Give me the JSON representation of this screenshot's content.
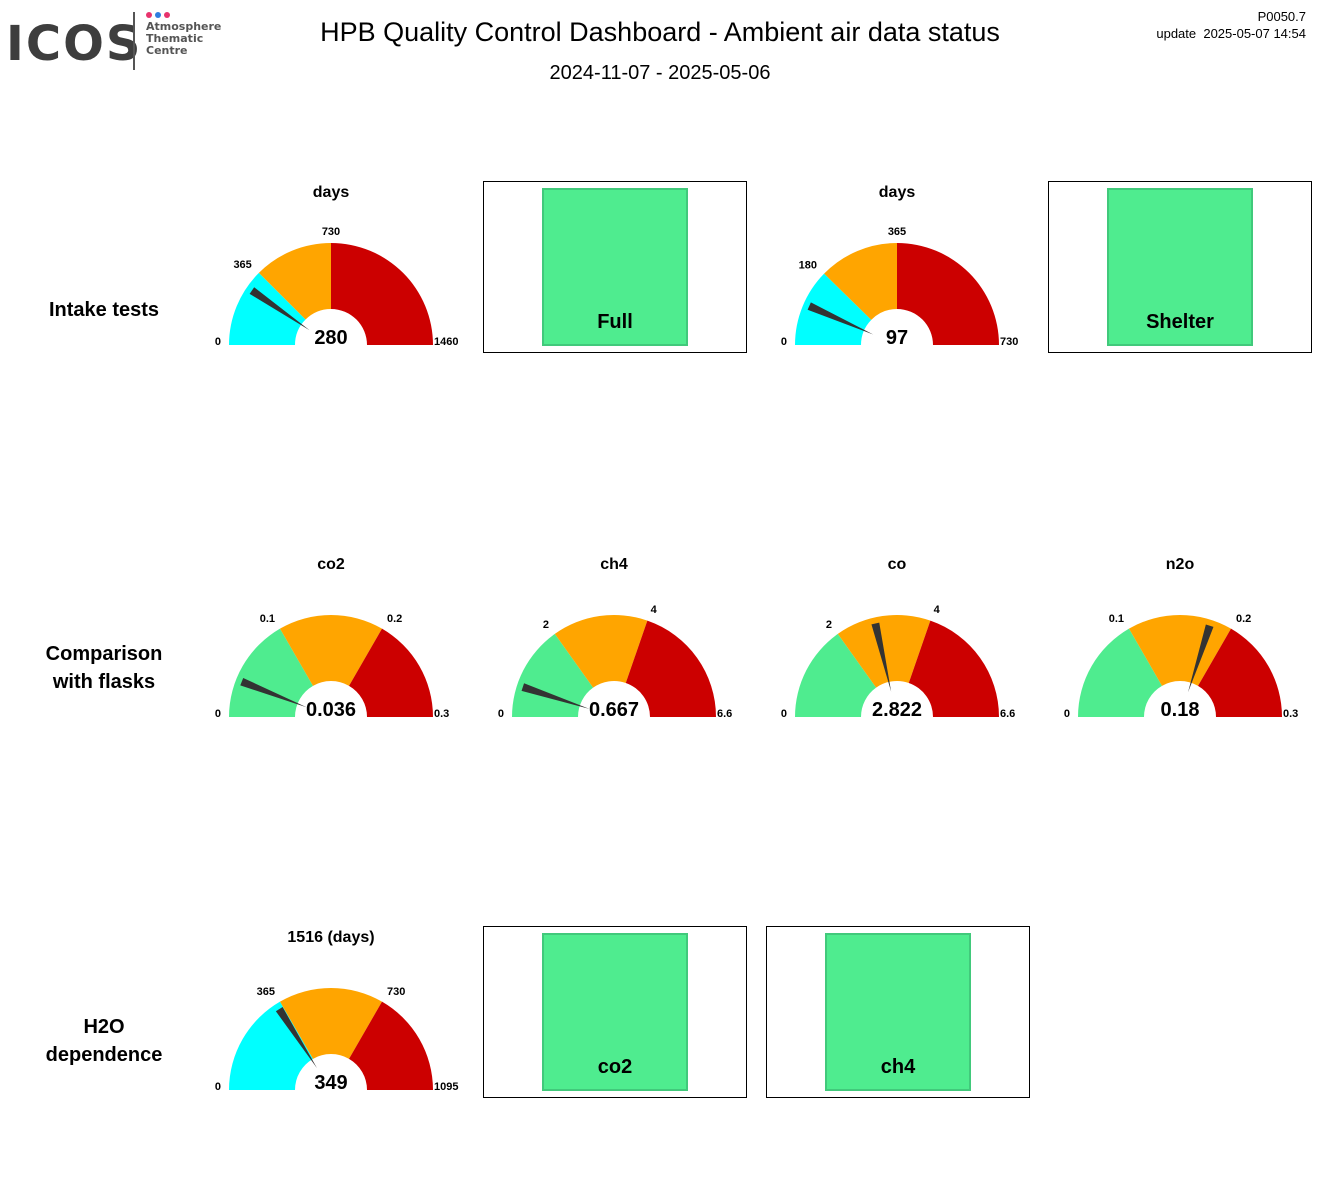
{
  "logo": {
    "text": "ICOS",
    "line1": "Atmosphere",
    "line2": "Thematic",
    "line3": "Centre",
    "dot_colors": [
      "#e8336d",
      "#2f7ee0",
      "#e8336d"
    ]
  },
  "header": {
    "title": "HPB  Quality Control Dashboard - Ambient air data status",
    "date_range": "2024-11-07 - 2025-05-06",
    "version": "P0050.7",
    "update": "update  2025-05-07 14:54"
  },
  "colors": {
    "cyan": "#00ffff",
    "green": "#4fec8f",
    "orange": "#ffa500",
    "red": "#cc0000",
    "needle": "#333333"
  },
  "rows": {
    "intake": {
      "label_line1": "Intake tests",
      "label_line2": ""
    },
    "flasks": {
      "label_line1": "Comparison",
      "label_line2": "with flasks"
    },
    "h2o": {
      "label_line1": "H2O",
      "label_line2": "dependence"
    }
  },
  "gauges": {
    "intake_full_days": {
      "title": "days",
      "value": 280,
      "value_label": "280",
      "min": 0,
      "max": 1460,
      "zones": [
        {
          "to": 365,
          "color": "cyan"
        },
        {
          "to": 730,
          "color": "orange"
        },
        {
          "to": 1460,
          "color": "red"
        }
      ],
      "tick_labels": [
        "0",
        "365",
        "730",
        "1460"
      ]
    },
    "intake_shelter_days": {
      "title": "days",
      "value": 97,
      "value_label": "97",
      "min": 0,
      "max": 730,
      "zones": [
        {
          "to": 180,
          "color": "cyan"
        },
        {
          "to": 365,
          "color": "orange"
        },
        {
          "to": 730,
          "color": "red"
        }
      ],
      "tick_labels": [
        "0",
        "180",
        "365",
        "730"
      ]
    },
    "flask_co2": {
      "title": "co2",
      "value": 0.036,
      "value_label": "0.036",
      "min": 0,
      "max": 0.3,
      "zones": [
        {
          "to": 0.1,
          "color": "green"
        },
        {
          "to": 0.2,
          "color": "orange"
        },
        {
          "to": 0.3,
          "color": "red"
        }
      ],
      "tick_labels": [
        "0",
        "0.1",
        "0.2",
        "0.3"
      ]
    },
    "flask_ch4": {
      "title": "ch4",
      "value": 0.667,
      "value_label": "0.667",
      "min": 0,
      "max": 6.6,
      "zones": [
        {
          "to": 2,
          "color": "green"
        },
        {
          "to": 4,
          "color": "orange"
        },
        {
          "to": 6.6,
          "color": "red"
        }
      ],
      "tick_labels": [
        "0",
        "2",
        "4",
        "6.6"
      ]
    },
    "flask_co": {
      "title": "co",
      "value": 2.822,
      "value_label": "2.822",
      "min": 0,
      "max": 6.6,
      "zones": [
        {
          "to": 2,
          "color": "green"
        },
        {
          "to": 4,
          "color": "orange"
        },
        {
          "to": 6.6,
          "color": "red"
        }
      ],
      "tick_labels": [
        "0",
        "2",
        "4",
        "6.6"
      ]
    },
    "flask_n2o": {
      "title": "n2o",
      "value": 0.18,
      "value_label": "0.18",
      "min": 0,
      "max": 0.3,
      "zones": [
        {
          "to": 0.1,
          "color": "green"
        },
        {
          "to": 0.2,
          "color": "orange"
        },
        {
          "to": 0.3,
          "color": "red"
        }
      ],
      "tick_labels": [
        "0",
        "0.1",
        "0.2",
        "0.3"
      ]
    },
    "h2o_days": {
      "title": "1516 (days)",
      "value": 349,
      "value_label": "349",
      "min": 0,
      "max": 1095,
      "zones": [
        {
          "to": 365,
          "color": "cyan"
        },
        {
          "to": 730,
          "color": "orange"
        },
        {
          "to": 1095,
          "color": "red"
        }
      ],
      "tick_labels": [
        "0",
        "365",
        "730",
        "1095"
      ]
    }
  },
  "status_boxes": {
    "intake_full": {
      "label": "Full",
      "color": "#4fec8f"
    },
    "intake_shelter": {
      "label": "Shelter",
      "color": "#4fec8f"
    },
    "h2o_co2": {
      "label": "co2",
      "color": "#4fec8f"
    },
    "h2o_ch4": {
      "label": "ch4",
      "color": "#4fec8f"
    }
  }
}
